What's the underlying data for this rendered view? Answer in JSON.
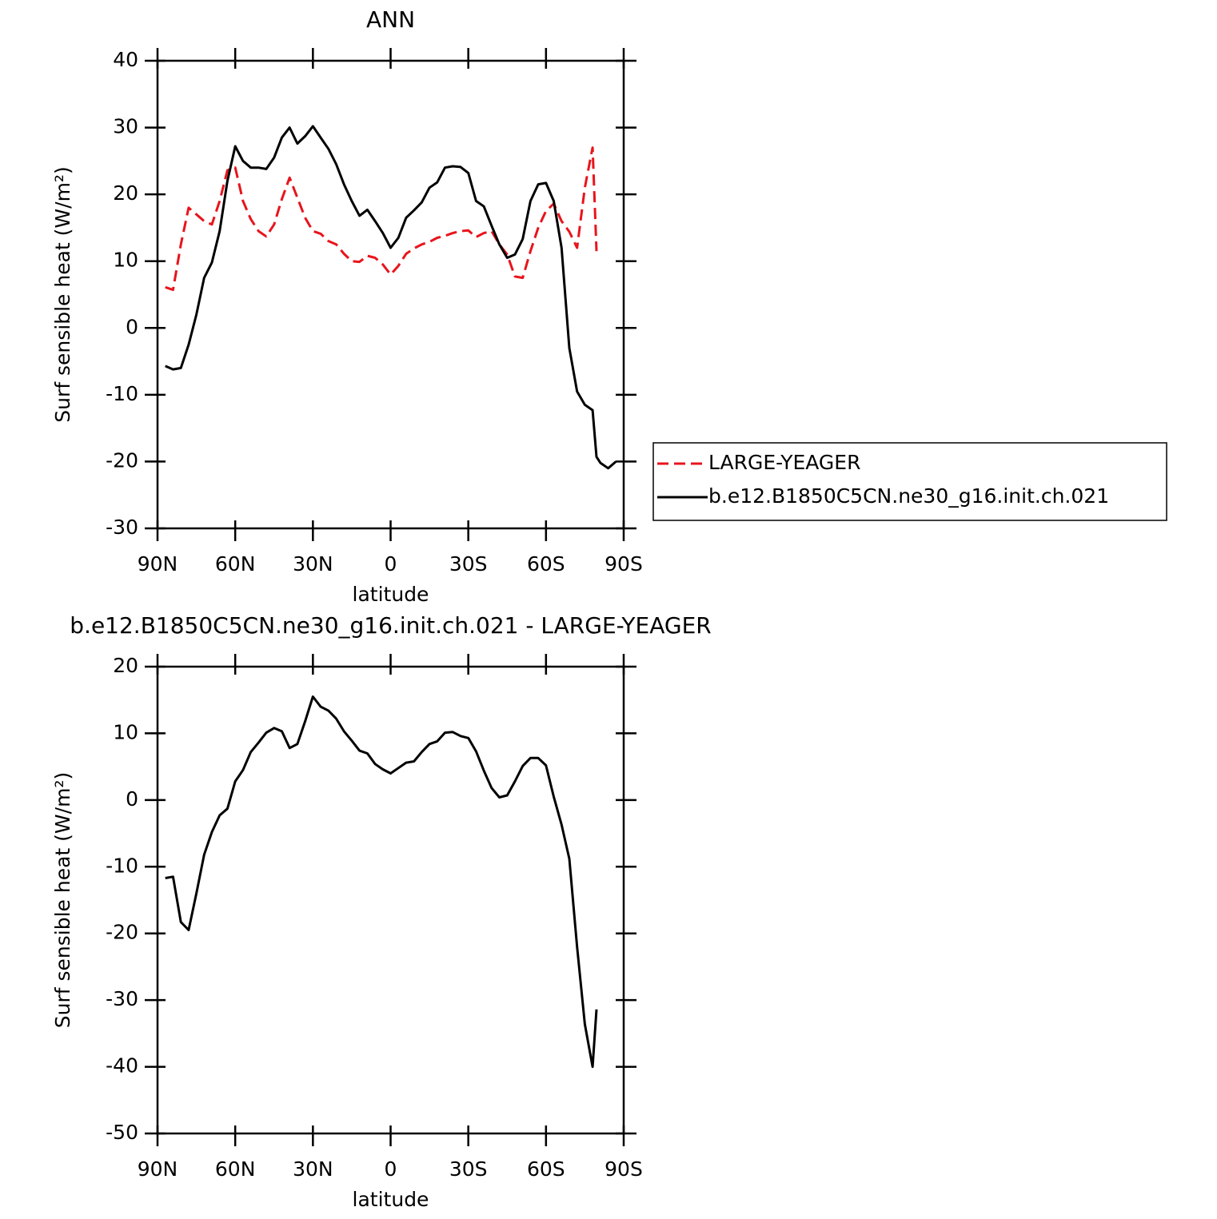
{
  "chart_data": [
    {
      "type": "line",
      "title": "ANN",
      "xlabel": "latitude",
      "ylabel": "Surf sensible heat (W/m²)",
      "x": [
        87,
        84,
        81,
        78,
        75,
        72,
        69,
        66,
        63,
        60,
        57,
        54,
        51,
        48,
        45,
        42,
        39,
        36,
        33,
        30,
        27,
        24,
        21,
        18,
        15,
        12,
        9,
        6,
        3,
        0,
        -3,
        -6,
        -9,
        -12,
        -15,
        -18,
        -21,
        -24,
        -27,
        -30,
        -33,
        -36,
        -39,
        -42,
        -45,
        -48,
        -51,
        -54,
        -57,
        -60,
        -63,
        -66,
        -69,
        -72,
        -75,
        -78,
        -79.5,
        -81,
        -84,
        -87
      ],
      "xlim": [
        90,
        -90
      ],
      "xticks": [
        {
          "value": 90,
          "label": "90N"
        },
        {
          "value": 60,
          "label": "60N"
        },
        {
          "value": 30,
          "label": "30N"
        },
        0,
        {
          "value": -30,
          "label": "30S"
        },
        {
          "value": -60,
          "label": "60S"
        },
        {
          "value": -90,
          "label": "90S"
        }
      ],
      "ylim": [
        -30,
        40
      ],
      "yticks": [
        -30,
        -20,
        -10,
        0,
        10,
        20,
        30,
        40
      ],
      "legend": "right",
      "series": [
        {
          "name": "LARGE-YEAGER",
          "color": "#e8141c",
          "linestyle": "dashed",
          "values": [
            6.1,
            5.7,
            12.5,
            18,
            17,
            16,
            15.5,
            19,
            23.6,
            24,
            19,
            16.3,
            14.5,
            13.7,
            15.5,
            19.3,
            22.5,
            19.5,
            16.5,
            14.5,
            14.1,
            13,
            12.5,
            11.1,
            10,
            9.9,
            10.8,
            10.5,
            9.5,
            8,
            9.3,
            11.1,
            11.9,
            12.5,
            12.9,
            13.5,
            13.8,
            14.2,
            14.5,
            14.6,
            13.6,
            14.2,
            14.5,
            12.5,
            11,
            7.7,
            7.5,
            11.5,
            15,
            17.5,
            18.6,
            16,
            14.4,
            12,
            21,
            27,
            11.5,
            null,
            null,
            null
          ]
        },
        {
          "name": "b.e12.B1850C5CN.ne30_g16.init.ch.021",
          "color": "#000000",
          "linestyle": "solid",
          "values": [
            -5.7,
            -6.2,
            -6.0,
            -2.5,
            2,
            7.5,
            9.8,
            14.5,
            22,
            27.2,
            25,
            24,
            24,
            23.8,
            25.5,
            28.5,
            30,
            27.6,
            28.7,
            30.2,
            28.5,
            26.8,
            24.5,
            21.5,
            19,
            16.8,
            17.7,
            16,
            14.2,
            12,
            13.5,
            16.5,
            17.6,
            18.8,
            21,
            21.8,
            24,
            24.2,
            24.1,
            23.2,
            19,
            18.2,
            15.3,
            12.5,
            10.5,
            11,
            13.3,
            19,
            21.5,
            21.7,
            19,
            12,
            -3,
            -9.5,
            -11.5,
            -12.3,
            -19.3,
            -20.2,
            -21,
            -20
          ]
        }
      ]
    },
    {
      "type": "line",
      "title": "b.e12.B1850C5CN.ne30_g16.init.ch.021 - LARGE-YEAGER",
      "xlabel": "latitude",
      "ylabel": "Surf sensible heat (W/m²)",
      "x": [
        87,
        84,
        81,
        78,
        75,
        72,
        69,
        66,
        63,
        60,
        57,
        54,
        51,
        48,
        45,
        42,
        39,
        36,
        33,
        30,
        27,
        24,
        21,
        18,
        15,
        12,
        9,
        6,
        3,
        0,
        -3,
        -6,
        -9,
        -12,
        -15,
        -18,
        -21,
        -24,
        -27,
        -30,
        -33,
        -36,
        -39,
        -42,
        -45,
        -48,
        -51,
        -54,
        -57,
        -60,
        -63,
        -66,
        -69,
        -72,
        -75,
        -78,
        -79.5,
        -81,
        -84,
        -87
      ],
      "xlim": [
        90,
        -90
      ],
      "xticks": [
        {
          "value": 90,
          "label": "90N"
        },
        {
          "value": 60,
          "label": "60N"
        },
        {
          "value": 30,
          "label": "30N"
        },
        0,
        {
          "value": -30,
          "label": "30S"
        },
        {
          "value": -60,
          "label": "60S"
        },
        {
          "value": -90,
          "label": "90S"
        }
      ],
      "ylim": [
        -50,
        20
      ],
      "yticks": [
        -50,
        -40,
        -30,
        -20,
        -10,
        0,
        10,
        20
      ],
      "color": "#000000",
      "values": [
        -11.7,
        -11.5,
        -18.3,
        -19.5,
        -14,
        -8.2,
        -4.8,
        -2.3,
        -1.3,
        2.8,
        4.5,
        7.2,
        8.6,
        10.1,
        10.8,
        10.3,
        7.8,
        8.4,
        11.8,
        15.5,
        14,
        13.4,
        12.2,
        10.3,
        8.9,
        7.4,
        7,
        5.4,
        4.6,
        4,
        4.8,
        5.6,
        5.8,
        7.2,
        8.4,
        8.8,
        10.1,
        10.2,
        9.6,
        9.3,
        7.3,
        4.4,
        1.8,
        0.4,
        0.7,
        2.8,
        5.1,
        6.3,
        6.3,
        5.2,
        0.5,
        -3.7,
        -8.8,
        -22,
        -33.6,
        -40,
        -31.4,
        null,
        null,
        null
      ]
    }
  ]
}
